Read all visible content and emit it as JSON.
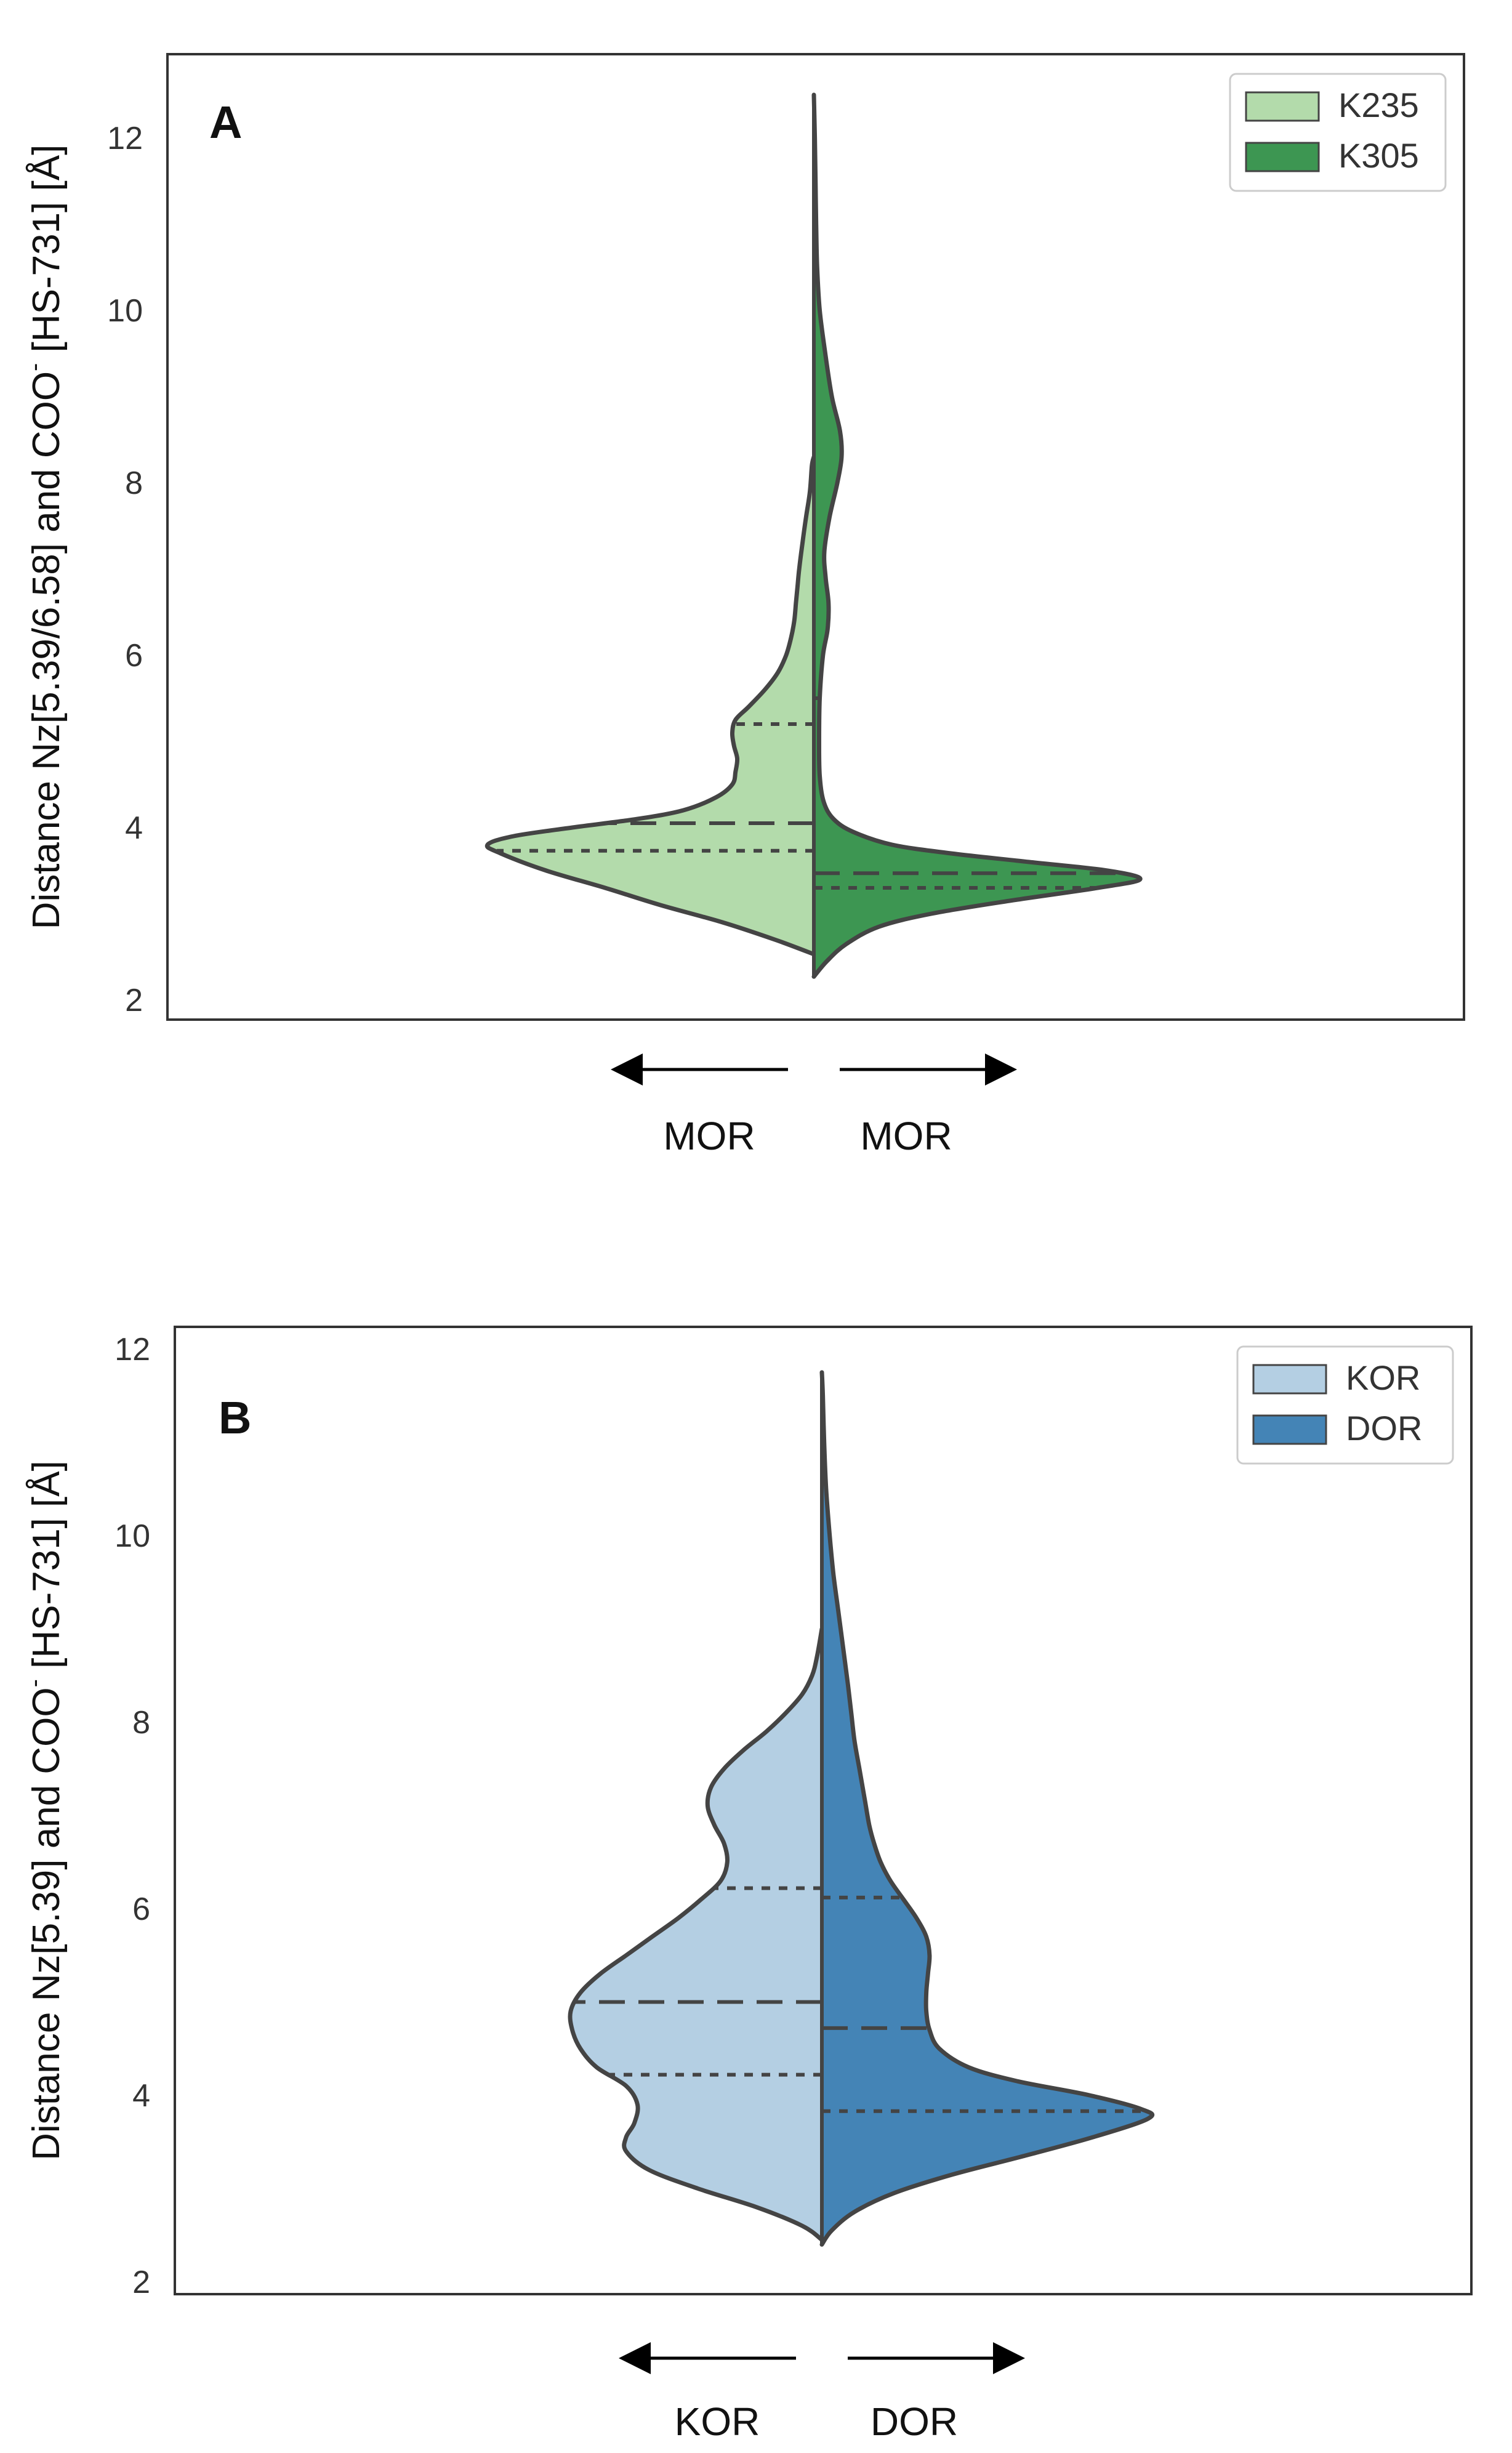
{
  "chart_data": [
    {
      "type": "violin",
      "panel_label": "A",
      "ylabel": "Distance Nz[5.39/6.58] and COO⁻ [HS-731] [Å]",
      "ylabel_parts": {
        "main": "Distance Nz[5.39/6.58] and COO",
        "sup": "-",
        "rest": " [HS-731] [Å]"
      },
      "ylim": [
        1.95,
        12.9
      ],
      "yticks": [
        "2",
        "4",
        "6",
        "8",
        "10",
        "12"
      ],
      "ytick_values": [
        2,
        4,
        6,
        8,
        10,
        12
      ],
      "legend": {
        "placement": "top-right",
        "entries": [
          {
            "label": "K235",
            "color": "#b3dbab"
          },
          {
            "label": "K305",
            "color": "#3d9652"
          }
        ]
      },
      "arrow_labels": [
        "MOR",
        "MOR"
      ],
      "series": [
        {
          "name": "K235",
          "side": "left",
          "color": "#b3dbab",
          "density": [
            [
              2.53,
              0.0
            ],
            [
              2.7,
              0.12
            ],
            [
              2.9,
              0.28
            ],
            [
              3.1,
              0.47
            ],
            [
              3.3,
              0.64
            ],
            [
              3.5,
              0.82
            ],
            [
              3.7,
              0.96
            ],
            [
              3.8,
              1.0
            ],
            [
              3.9,
              0.92
            ],
            [
              4.0,
              0.74
            ],
            [
              4.1,
              0.54
            ],
            [
              4.2,
              0.4
            ],
            [
              4.35,
              0.3
            ],
            [
              4.5,
              0.25
            ],
            [
              4.65,
              0.24
            ],
            [
              4.8,
              0.235
            ],
            [
              4.95,
              0.245
            ],
            [
              5.1,
              0.25
            ],
            [
              5.25,
              0.24
            ],
            [
              5.4,
              0.2
            ],
            [
              5.6,
              0.15
            ],
            [
              5.8,
              0.11
            ],
            [
              6.0,
              0.085
            ],
            [
              6.2,
              0.07
            ],
            [
              6.4,
              0.06
            ],
            [
              6.6,
              0.055
            ],
            [
              6.8,
              0.05
            ],
            [
              7.0,
              0.045
            ],
            [
              7.3,
              0.035
            ],
            [
              7.6,
              0.024
            ],
            [
              7.9,
              0.012
            ],
            [
              8.2,
              0.006
            ],
            [
              8.3,
              0.0
            ]
          ],
          "quartiles": {
            "q1": 3.73,
            "median": 4.05,
            "q3": 5.2
          }
        },
        {
          "name": "K305",
          "side": "right",
          "color": "#3d9652",
          "density": [
            [
              2.27,
              0.0
            ],
            [
              2.45,
              0.04
            ],
            [
              2.65,
              0.1
            ],
            [
              2.85,
              0.2
            ],
            [
              3.0,
              0.36
            ],
            [
              3.15,
              0.6
            ],
            [
              3.3,
              0.87
            ],
            [
              3.4,
              1.0
            ],
            [
              3.5,
              0.9
            ],
            [
              3.6,
              0.66
            ],
            [
              3.7,
              0.42
            ],
            [
              3.8,
              0.24
            ],
            [
              3.95,
              0.12
            ],
            [
              4.1,
              0.06
            ],
            [
              4.3,
              0.03
            ],
            [
              4.6,
              0.018
            ],
            [
              5.0,
              0.016
            ],
            [
              5.5,
              0.018
            ],
            [
              6.0,
              0.028
            ],
            [
              6.3,
              0.042
            ],
            [
              6.6,
              0.045
            ],
            [
              6.9,
              0.036
            ],
            [
              7.2,
              0.032
            ],
            [
              7.6,
              0.048
            ],
            [
              8.0,
              0.072
            ],
            [
              8.3,
              0.085
            ],
            [
              8.6,
              0.08
            ],
            [
              9.0,
              0.055
            ],
            [
              9.5,
              0.035
            ],
            [
              10.0,
              0.018
            ],
            [
              10.5,
              0.01
            ],
            [
              11.0,
              0.007
            ],
            [
              11.5,
              0.005
            ],
            [
              12.0,
              0.003
            ],
            [
              12.5,
              0.0
            ]
          ],
          "quartiles": {
            "q1": 3.3,
            "median": 3.47,
            "q3": 5.5
          }
        }
      ]
    },
    {
      "type": "violin",
      "panel_label": "B",
      "ylabel": "Distance Nz[5.39] and COO⁻ [HS-731] [Å]",
      "ylabel_parts": {
        "main": "Distance Nz[5.39] and COO",
        "sup": "-",
        "rest": " [HS-731] [Å]"
      },
      "ylim": [
        1.95,
        12.3
      ],
      "yticks": [
        "2",
        "4",
        "6",
        "8",
        "10",
        "12"
      ],
      "ytick_values": [
        2,
        4,
        6,
        8,
        10,
        12
      ],
      "legend": {
        "placement": "top-right",
        "entries": [
          {
            "label": "KOR",
            "color": "#b4cfe3"
          },
          {
            "label": "DOR",
            "color": "#4484b6"
          }
        ]
      },
      "arrow_labels": [
        "KOR",
        "DOR"
      ],
      "series": [
        {
          "name": "KOR",
          "side": "left",
          "color": "#b4cfe3",
          "density": [
            [
              2.45,
              0.0
            ],
            [
              2.6,
              0.06
            ],
            [
              2.8,
              0.2
            ],
            [
              3.0,
              0.38
            ],
            [
              3.2,
              0.53
            ],
            [
              3.4,
              0.6
            ],
            [
              3.55,
              0.6
            ],
            [
              3.7,
              0.575
            ],
            [
              3.9,
              0.565
            ],
            [
              4.1,
              0.6
            ],
            [
              4.3,
              0.69
            ],
            [
              4.5,
              0.74
            ],
            [
              4.7,
              0.765
            ],
            [
              4.9,
              0.77
            ],
            [
              5.1,
              0.74
            ],
            [
              5.3,
              0.68
            ],
            [
              5.5,
              0.6
            ],
            [
              5.7,
              0.52
            ],
            [
              5.9,
              0.44
            ],
            [
              6.1,
              0.37
            ],
            [
              6.3,
              0.31
            ],
            [
              6.5,
              0.29
            ],
            [
              6.7,
              0.3
            ],
            [
              6.9,
              0.33
            ],
            [
              7.1,
              0.35
            ],
            [
              7.3,
              0.34
            ],
            [
              7.5,
              0.3
            ],
            [
              7.7,
              0.24
            ],
            [
              7.9,
              0.17
            ],
            [
              8.1,
              0.11
            ],
            [
              8.3,
              0.06
            ],
            [
              8.5,
              0.03
            ],
            [
              8.7,
              0.015
            ],
            [
              9.0,
              0.0
            ]
          ],
          "quartiles": {
            "q1": 4.22,
            "median": 5.0,
            "q3": 6.22
          }
        },
        {
          "name": "DOR",
          "side": "right",
          "color": "#4484b6",
          "density": [
            [
              2.4,
              0.0
            ],
            [
              2.55,
              0.03
            ],
            [
              2.75,
              0.1
            ],
            [
              2.95,
              0.22
            ],
            [
              3.15,
              0.4
            ],
            [
              3.35,
              0.62
            ],
            [
              3.55,
              0.83
            ],
            [
              3.75,
              1.0
            ],
            [
              3.85,
              0.98
            ],
            [
              4.0,
              0.82
            ],
            [
              4.15,
              0.6
            ],
            [
              4.3,
              0.45
            ],
            [
              4.5,
              0.36
            ],
            [
              4.7,
              0.33
            ],
            [
              4.9,
              0.32
            ],
            [
              5.1,
              0.32
            ],
            [
              5.3,
              0.325
            ],
            [
              5.5,
              0.33
            ],
            [
              5.7,
              0.32
            ],
            [
              5.9,
              0.29
            ],
            [
              6.1,
              0.25
            ],
            [
              6.3,
              0.21
            ],
            [
              6.5,
              0.18
            ],
            [
              6.7,
              0.16
            ],
            [
              6.9,
              0.145
            ],
            [
              7.2,
              0.13
            ],
            [
              7.5,
              0.115
            ],
            [
              7.8,
              0.1
            ],
            [
              8.1,
              0.09
            ],
            [
              8.4,
              0.08
            ],
            [
              8.8,
              0.065
            ],
            [
              9.2,
              0.05
            ],
            [
              9.6,
              0.035
            ],
            [
              10.0,
              0.024
            ],
            [
              10.5,
              0.013
            ],
            [
              11.0,
              0.007
            ],
            [
              11.5,
              0.003
            ],
            [
              11.75,
              0.0
            ]
          ],
          "quartiles": {
            "q1": 3.83,
            "median": 4.72,
            "q3": 6.12
          }
        }
      ]
    }
  ]
}
